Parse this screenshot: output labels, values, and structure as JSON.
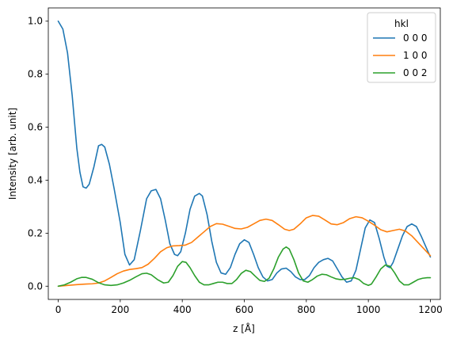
{
  "chart_data": {
    "type": "line",
    "xlabel": "z [Å]",
    "ylabel": "Intensity [arb. unit]",
    "xlim": [
      -32,
      1232
    ],
    "ylim": [
      -0.05,
      1.05
    ],
    "xticks": [
      0,
      200,
      400,
      600,
      800,
      1000,
      1200
    ],
    "yticks": [
      0.0,
      0.2,
      0.4,
      0.6,
      0.8,
      1.0
    ],
    "xtick_labels": [
      "0",
      "200",
      "400",
      "600",
      "800",
      "1000",
      "1200"
    ],
    "ytick_labels": [
      "0.0",
      "0.2",
      "0.4",
      "0.6",
      "0.8",
      "1.0"
    ],
    "grid": false,
    "legend": {
      "title": "hkl",
      "placement": "top-right"
    },
    "series": [
      {
        "name": "0 0 0",
        "color": "#1f77b4",
        "points": [
          [
            0,
            1.0
          ],
          [
            15,
            0.97
          ],
          [
            30,
            0.88
          ],
          [
            45,
            0.72
          ],
          [
            60,
            0.52
          ],
          [
            70,
            0.43
          ],
          [
            80,
            0.375
          ],
          [
            90,
            0.37
          ],
          [
            100,
            0.385
          ],
          [
            115,
            0.45
          ],
          [
            130,
            0.53
          ],
          [
            140,
            0.535
          ],
          [
            150,
            0.525
          ],
          [
            165,
            0.46
          ],
          [
            180,
            0.37
          ],
          [
            200,
            0.24
          ],
          [
            215,
            0.12
          ],
          [
            230,
            0.08
          ],
          [
            245,
            0.1
          ],
          [
            265,
            0.21
          ],
          [
            285,
            0.33
          ],
          [
            300,
            0.36
          ],
          [
            315,
            0.365
          ],
          [
            330,
            0.33
          ],
          [
            345,
            0.25
          ],
          [
            360,
            0.16
          ],
          [
            375,
            0.12
          ],
          [
            385,
            0.115
          ],
          [
            395,
            0.13
          ],
          [
            410,
            0.2
          ],
          [
            425,
            0.29
          ],
          [
            440,
            0.34
          ],
          [
            455,
            0.35
          ],
          [
            465,
            0.34
          ],
          [
            480,
            0.27
          ],
          [
            495,
            0.17
          ],
          [
            510,
            0.09
          ],
          [
            525,
            0.05
          ],
          [
            540,
            0.045
          ],
          [
            555,
            0.07
          ],
          [
            570,
            0.12
          ],
          [
            585,
            0.16
          ],
          [
            600,
            0.175
          ],
          [
            615,
            0.165
          ],
          [
            630,
            0.12
          ],
          [
            645,
            0.07
          ],
          [
            660,
            0.035
          ],
          [
            675,
            0.02
          ],
          [
            690,
            0.025
          ],
          [
            705,
            0.05
          ],
          [
            720,
            0.065
          ],
          [
            735,
            0.068
          ],
          [
            750,
            0.055
          ],
          [
            765,
            0.035
          ],
          [
            780,
            0.025
          ],
          [
            795,
            0.025
          ],
          [
            810,
            0.04
          ],
          [
            825,
            0.07
          ],
          [
            840,
            0.09
          ],
          [
            855,
            0.1
          ],
          [
            870,
            0.105
          ],
          [
            885,
            0.095
          ],
          [
            900,
            0.065
          ],
          [
            915,
            0.035
          ],
          [
            930,
            0.015
          ],
          [
            945,
            0.02
          ],
          [
            960,
            0.06
          ],
          [
            975,
            0.14
          ],
          [
            990,
            0.22
          ],
          [
            1005,
            0.25
          ],
          [
            1020,
            0.24
          ],
          [
            1035,
            0.18
          ],
          [
            1050,
            0.11
          ],
          [
            1060,
            0.075
          ],
          [
            1070,
            0.07
          ],
          [
            1080,
            0.09
          ],
          [
            1095,
            0.14
          ],
          [
            1110,
            0.19
          ],
          [
            1125,
            0.225
          ],
          [
            1140,
            0.235
          ],
          [
            1155,
            0.225
          ],
          [
            1170,
            0.19
          ],
          [
            1185,
            0.15
          ],
          [
            1200,
            0.11
          ]
        ]
      },
      {
        "name": "1 0 0",
        "color": "#ff7f0e",
        "points": [
          [
            0,
            0.0
          ],
          [
            30,
            0.003
          ],
          [
            60,
            0.006
          ],
          [
            90,
            0.008
          ],
          [
            110,
            0.009
          ],
          [
            130,
            0.012
          ],
          [
            150,
            0.02
          ],
          [
            170,
            0.033
          ],
          [
            190,
            0.047
          ],
          [
            210,
            0.057
          ],
          [
            230,
            0.063
          ],
          [
            250,
            0.066
          ],
          [
            270,
            0.07
          ],
          [
            290,
            0.083
          ],
          [
            310,
            0.105
          ],
          [
            330,
            0.13
          ],
          [
            350,
            0.145
          ],
          [
            370,
            0.152
          ],
          [
            390,
            0.153
          ],
          [
            410,
            0.155
          ],
          [
            430,
            0.165
          ],
          [
            450,
            0.185
          ],
          [
            470,
            0.205
          ],
          [
            490,
            0.225
          ],
          [
            510,
            0.236
          ],
          [
            530,
            0.234
          ],
          [
            550,
            0.226
          ],
          [
            570,
            0.218
          ],
          [
            590,
            0.216
          ],
          [
            610,
            0.222
          ],
          [
            630,
            0.235
          ],
          [
            650,
            0.248
          ],
          [
            670,
            0.253
          ],
          [
            690,
            0.248
          ],
          [
            710,
            0.232
          ],
          [
            730,
            0.215
          ],
          [
            745,
            0.21
          ],
          [
            760,
            0.215
          ],
          [
            780,
            0.235
          ],
          [
            800,
            0.258
          ],
          [
            820,
            0.267
          ],
          [
            840,
            0.264
          ],
          [
            860,
            0.25
          ],
          [
            880,
            0.235
          ],
          [
            900,
            0.232
          ],
          [
            920,
            0.24
          ],
          [
            940,
            0.255
          ],
          [
            960,
            0.262
          ],
          [
            980,
            0.258
          ],
          [
            1000,
            0.245
          ],
          [
            1020,
            0.23
          ],
          [
            1040,
            0.213
          ],
          [
            1060,
            0.205
          ],
          [
            1080,
            0.21
          ],
          [
            1100,
            0.215
          ],
          [
            1120,
            0.208
          ],
          [
            1140,
            0.19
          ],
          [
            1160,
            0.165
          ],
          [
            1180,
            0.14
          ],
          [
            1200,
            0.115
          ]
        ]
      },
      {
        "name": "0 0 2",
        "color": "#2ca02c",
        "points": [
          [
            0,
            0.0
          ],
          [
            20,
            0.005
          ],
          [
            40,
            0.015
          ],
          [
            60,
            0.028
          ],
          [
            75,
            0.033
          ],
          [
            90,
            0.033
          ],
          [
            110,
            0.026
          ],
          [
            130,
            0.013
          ],
          [
            150,
            0.005
          ],
          [
            170,
            0.003
          ],
          [
            190,
            0.005
          ],
          [
            210,
            0.012
          ],
          [
            230,
            0.022
          ],
          [
            250,
            0.035
          ],
          [
            270,
            0.047
          ],
          [
            285,
            0.049
          ],
          [
            300,
            0.043
          ],
          [
            320,
            0.025
          ],
          [
            340,
            0.012
          ],
          [
            355,
            0.015
          ],
          [
            370,
            0.04
          ],
          [
            385,
            0.075
          ],
          [
            400,
            0.093
          ],
          [
            412,
            0.09
          ],
          [
            425,
            0.07
          ],
          [
            440,
            0.04
          ],
          [
            455,
            0.015
          ],
          [
            470,
            0.005
          ],
          [
            485,
            0.005
          ],
          [
            500,
            0.01
          ],
          [
            515,
            0.015
          ],
          [
            530,
            0.015
          ],
          [
            545,
            0.01
          ],
          [
            560,
            0.01
          ],
          [
            575,
            0.025
          ],
          [
            590,
            0.048
          ],
          [
            605,
            0.06
          ],
          [
            620,
            0.055
          ],
          [
            635,
            0.038
          ],
          [
            650,
            0.022
          ],
          [
            665,
            0.018
          ],
          [
            680,
            0.03
          ],
          [
            695,
            0.065
          ],
          [
            710,
            0.11
          ],
          [
            725,
            0.14
          ],
          [
            735,
            0.148
          ],
          [
            745,
            0.14
          ],
          [
            760,
            0.1
          ],
          [
            775,
            0.05
          ],
          [
            790,
            0.02
          ],
          [
            805,
            0.015
          ],
          [
            820,
            0.025
          ],
          [
            835,
            0.038
          ],
          [
            850,
            0.045
          ],
          [
            865,
            0.043
          ],
          [
            880,
            0.035
          ],
          [
            895,
            0.028
          ],
          [
            910,
            0.025
          ],
          [
            925,
            0.026
          ],
          [
            940,
            0.03
          ],
          [
            955,
            0.032
          ],
          [
            970,
            0.025
          ],
          [
            985,
            0.01
          ],
          [
            1000,
            0.003
          ],
          [
            1010,
            0.008
          ],
          [
            1025,
            0.035
          ],
          [
            1040,
            0.065
          ],
          [
            1055,
            0.08
          ],
          [
            1070,
            0.075
          ],
          [
            1085,
            0.05
          ],
          [
            1100,
            0.02
          ],
          [
            1115,
            0.005
          ],
          [
            1130,
            0.005
          ],
          [
            1145,
            0.015
          ],
          [
            1160,
            0.025
          ],
          [
            1175,
            0.03
          ],
          [
            1190,
            0.032
          ],
          [
            1200,
            0.032
          ]
        ]
      }
    ]
  }
}
